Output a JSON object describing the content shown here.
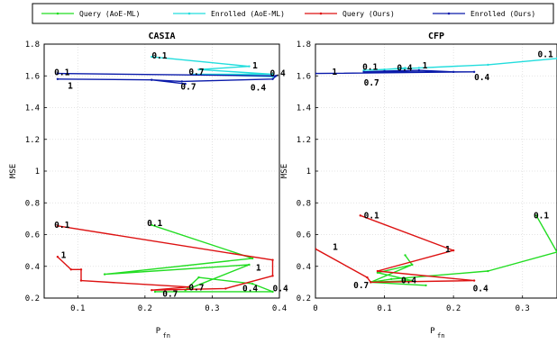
{
  "legend": [
    {
      "name": "Query (AoE-ML)",
      "color": "#22dd22"
    },
    {
      "name": "Enrolled (AoE-ML)",
      "color": "#22dddd"
    },
    {
      "name": "Query (Ours)",
      "color": "#dd1111"
    },
    {
      "name": "Enrolled (Ours)",
      "color": "#0a1aaa"
    }
  ],
  "chart_data": [
    {
      "type": "line",
      "title": "CASIA",
      "xlabel": "P",
      "xlabel_sub": "fn",
      "ylabel": "MSE",
      "xlim": [
        0.05,
        0.4
      ],
      "ylim": [
        0.2,
        1.8
      ],
      "xticks": [
        0.1,
        0.2,
        0.3,
        0.4
      ],
      "yticks": [
        0.2,
        0.4,
        0.6,
        0.8,
        1,
        1.2,
        1.4,
        1.6,
        1.8
      ],
      "grid": true,
      "series": [
        {
          "name": "Query (AoE-ML)",
          "color": "#22dd22",
          "points": [
            [
              0.21,
              0.66
            ],
            [
              0.36,
              0.45
            ],
            [
              0.14,
              0.35
            ],
            [
              0.355,
              0.41
            ],
            [
              0.26,
              0.25
            ],
            [
              0.28,
              0.33
            ],
            [
              0.36,
              0.29
            ],
            [
              0.39,
              0.24
            ],
            [
              0.215,
              0.24
            ]
          ]
        },
        {
          "name": "Enrolled (AoE-ML)",
          "color": "#22dddd",
          "points": [
            [
              0.21,
              1.72
            ],
            [
              0.355,
              1.66
            ],
            [
              0.28,
              1.64
            ],
            [
              0.39,
              1.61
            ],
            [
              0.27,
              1.61
            ],
            [
              0.39,
              1.595
            ]
          ]
        },
        {
          "name": "Query (Ours)",
          "color": "#dd1111",
          "points": [
            [
              0.07,
              0.655
            ],
            [
              0.39,
              0.44
            ],
            [
              0.39,
              0.34
            ],
            [
              0.32,
              0.26
            ],
            [
              0.21,
              0.25
            ],
            [
              0.265,
              0.27
            ],
            [
              0.105,
              0.31
            ],
            [
              0.105,
              0.38
            ],
            [
              0.09,
              0.38
            ],
            [
              0.07,
              0.46
            ]
          ]
        },
        {
          "name": "Enrolled (Ours)",
          "color": "#0a1aaa",
          "points": [
            [
              0.07,
              1.615
            ],
            [
              0.395,
              1.6
            ],
            [
              0.39,
              1.58
            ],
            [
              0.255,
              1.565
            ],
            [
              0.21,
              1.575
            ],
            [
              0.26,
              1.55
            ],
            [
              0.21,
              1.575
            ],
            [
              0.07,
              1.58
            ]
          ]
        }
      ],
      "annotations": [
        {
          "text": "0.1",
          "x": 0.065,
          "y": 0.66
        },
        {
          "text": "1",
          "x": 0.075,
          "y": 0.47
        },
        {
          "text": "0.1",
          "x": 0.203,
          "y": 0.67
        },
        {
          "text": "1",
          "x": 0.365,
          "y": 0.39
        },
        {
          "text": "0.7",
          "x": 0.226,
          "y": 0.225
        },
        {
          "text": "0.7",
          "x": 0.265,
          "y": 0.265
        },
        {
          "text": "0.4",
          "x": 0.345,
          "y": 0.26
        },
        {
          "text": "0.4",
          "x": 0.39,
          "y": 0.26
        },
        {
          "text": "0.1",
          "x": 0.065,
          "y": 1.62
        },
        {
          "text": "1",
          "x": 0.085,
          "y": 1.535
        },
        {
          "text": "0.1",
          "x": 0.21,
          "y": 1.725
        },
        {
          "text": "1",
          "x": 0.36,
          "y": 1.665
        },
        {
          "text": "0.7",
          "x": 0.265,
          "y": 1.625
        },
        {
          "text": "0.4",
          "x": 0.386,
          "y": 1.615
        },
        {
          "text": "0.7",
          "x": 0.253,
          "y": 1.53
        },
        {
          "text": "0.4",
          "x": 0.357,
          "y": 1.525
        }
      ]
    },
    {
      "type": "line",
      "title": "CFP",
      "xlabel": "P",
      "xlabel_sub": "fn",
      "ylabel": "MSE",
      "xlim": [
        0,
        0.35
      ],
      "ylim": [
        0.2,
        1.8
      ],
      "xticks": [
        0,
        0.1,
        0.2,
        0.3
      ],
      "yticks": [
        0.2,
        0.4,
        0.6,
        0.8,
        1,
        1.2,
        1.4,
        1.6,
        1.8
      ],
      "grid": true,
      "series": [
        {
          "name": "Query (AoE-ML)",
          "color": "#22dd22",
          "points": [
            [
              0.32,
              0.72
            ],
            [
              0.35,
              0.49
            ],
            [
              0.25,
              0.37
            ],
            [
              0.11,
              0.32
            ],
            [
              0.08,
              0.3
            ],
            [
              0.14,
              0.41
            ],
            [
              0.13,
              0.47
            ],
            [
              0.14,
              0.41
            ],
            [
              0.09,
              0.36
            ],
            [
              0.14,
              0.31
            ],
            [
              0.08,
              0.3
            ],
            [
              0.16,
              0.28
            ]
          ]
        },
        {
          "name": "Enrolled (AoE-ML)",
          "color": "#22dddd",
          "points": [
            [
              0.35,
              1.71
            ],
            [
              0.25,
              1.67
            ],
            [
              0.15,
              1.65
            ],
            [
              0.07,
              1.635
            ],
            [
              0.1,
              1.64
            ],
            [
              0.13,
              1.65
            ]
          ]
        },
        {
          "name": "Query (Ours)",
          "color": "#dd1111",
          "points": [
            [
              0.065,
              0.72
            ],
            [
              0.2,
              0.5
            ],
            [
              0.09,
              0.37
            ],
            [
              0.23,
              0.31
            ],
            [
              0.08,
              0.3
            ],
            [
              0.075,
              0.33
            ],
            [
              0.0,
              0.51
            ]
          ]
        },
        {
          "name": "Enrolled (Ours)",
          "color": "#0a1aaa",
          "points": [
            [
              0.0,
              1.615
            ],
            [
              0.23,
              1.625
            ],
            [
              0.07,
              1.625
            ],
            [
              0.1,
              1.63
            ],
            [
              0.15,
              1.635
            ],
            [
              0.2,
              1.625
            ]
          ]
        }
      ],
      "annotations": [
        {
          "text": "0.1",
          "x": 0.07,
          "y": 0.72
        },
        {
          "text": "1",
          "x": 0.188,
          "y": 0.505
        },
        {
          "text": "1",
          "x": 0.025,
          "y": 0.52
        },
        {
          "text": "0.7",
          "x": 0.055,
          "y": 0.28
        },
        {
          "text": "0.4",
          "x": 0.124,
          "y": 0.31
        },
        {
          "text": "0.4",
          "x": 0.228,
          "y": 0.26
        },
        {
          "text": "0.1",
          "x": 0.316,
          "y": 0.72
        },
        {
          "text": "0.1",
          "x": 0.322,
          "y": 1.735
        },
        {
          "text": "0.1",
          "x": 0.068,
          "y": 1.655
        },
        {
          "text": "0.4",
          "x": 0.118,
          "y": 1.65
        },
        {
          "text": "1",
          "x": 0.155,
          "y": 1.665
        },
        {
          "text": "1",
          "x": 0.024,
          "y": 1.625
        },
        {
          "text": "0.7",
          "x": 0.07,
          "y": 1.555
        },
        {
          "text": "0.4",
          "x": 0.23,
          "y": 1.59
        }
      ]
    }
  ]
}
